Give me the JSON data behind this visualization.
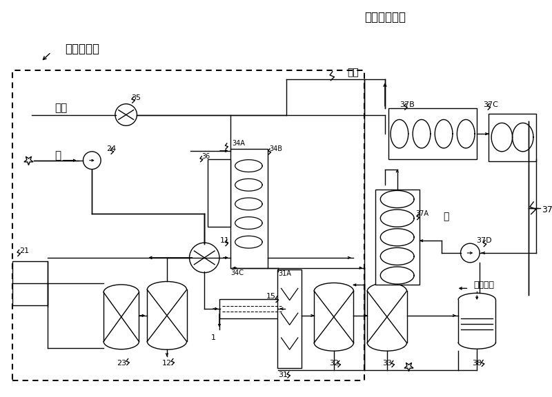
{
  "bg_color": "#ffffff",
  "line_color": "#000000",
  "fig_width": 8.0,
  "fig_height": 5.76,
  "labels": {
    "hydrogen_system": "氢制备系统",
    "fuel_cell_system": "燃料电池系统",
    "air": "空气",
    "water": "水",
    "warm_water": "温水",
    "water2": "水",
    "exhaust_gas": "排出气体"
  }
}
